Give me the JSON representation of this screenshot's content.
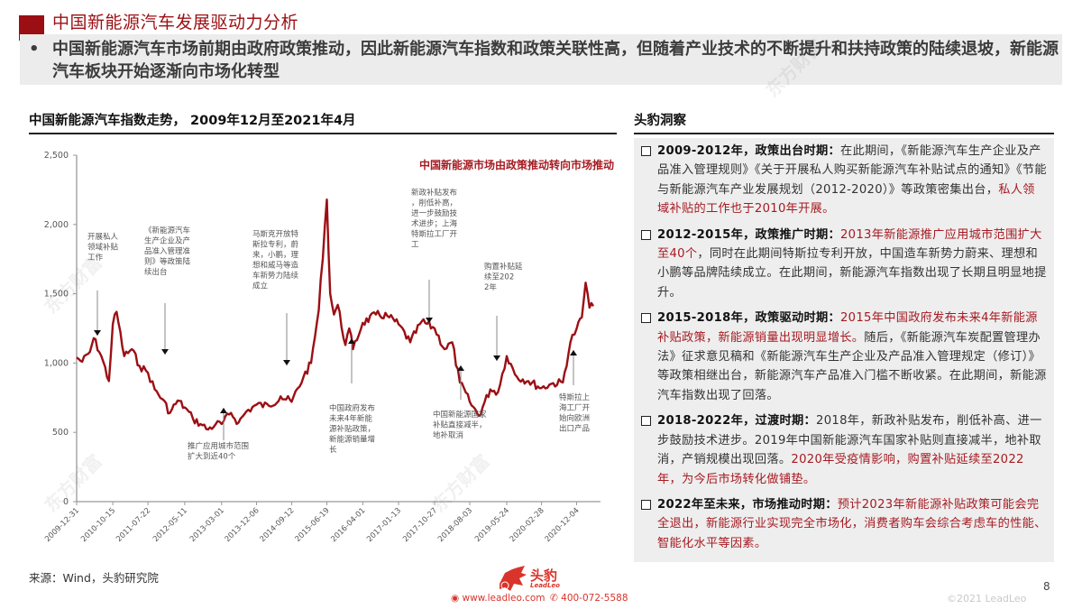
{
  "header": {
    "title": "中国新能源汽车发展驱动力分析",
    "summary_bullet": "•",
    "summary": "中国新能源汽车市场前期由政府政策推动，因此新能源汽车指数和政策关联性高，但随着产业技术的不断提升和扶持政策的陆续退坡，新能源汽车板块开始逐渐向市场化转型",
    "accent_color": "#9b0f14"
  },
  "chart_section": {
    "heading": "中国新能源汽车指数走势， 2009年12月至2021年4月"
  },
  "chart_data": {
    "type": "line",
    "title": "中国新能源汽车指数走势， 2009年12月至2021年4月",
    "subtitle": "中国新能源市场由政策推动转向市场推动",
    "xlabel": "",
    "ylabel": "",
    "ylim": [
      0,
      2500
    ],
    "yticks": [
      "0",
      "500",
      "1,000",
      "1,500",
      "2,000",
      "2,500"
    ],
    "xticks": [
      "2009-12-31",
      "2010-10-15",
      "2011-07-22",
      "2012-05-11",
      "2013-03-01",
      "2013-12-06",
      "2014-09-12",
      "2015-06-19",
      "2016-04-01",
      "2017-01-13",
      "2017-10-27",
      "2018-08-03",
      "2019-05-24",
      "2020-02-28",
      "2020-12-04"
    ],
    "grid": false,
    "legend": "none",
    "line_color": "#9b0f14",
    "series": [
      {
        "name": "中国新能源汽车指数",
        "x": [
          "2009-12-31",
          "2010-02",
          "2010-04",
          "2010-05",
          "2010-07",
          "2010-09",
          "2010-10-15",
          "2010-11",
          "2011-01",
          "2011-03",
          "2011-05",
          "2011-07-22",
          "2011-09",
          "2011-11",
          "2012-01",
          "2012-03",
          "2012-05-11",
          "2012-07",
          "2012-09",
          "2012-11",
          "2013-01",
          "2013-03-01",
          "2013-05",
          "2013-07",
          "2013-09",
          "2013-12-06",
          "2014-03",
          "2014-06",
          "2014-09-12",
          "2014-12",
          "2015-02",
          "2015-04",
          "2015-06-19",
          "2015-07",
          "2015-08",
          "2015-09",
          "2015-11",
          "2015-12",
          "2016-01",
          "2016-04-01",
          "2016-07",
          "2016-10",
          "2017-01-13",
          "2017-04",
          "2017-07",
          "2017-10-27",
          "2018-01",
          "2018-03",
          "2018-05",
          "2018-08-03",
          "2018-10",
          "2019-01",
          "2019-03",
          "2019-05-24",
          "2019-08",
          "2019-11",
          "2020-02-28",
          "2020-05",
          "2020-08",
          "2020-10",
          "2020-12-04",
          "2021-01",
          "2021-02",
          "2021-03",
          "2021-04"
        ],
        "values": [
          1040,
          1010,
          1080,
          1180,
          1050,
          870,
          1280,
          1370,
          1050,
          1100,
          980,
          930,
          810,
          740,
          640,
          730,
          680,
          600,
          560,
          520,
          560,
          560,
          640,
          570,
          650,
          700,
          690,
          760,
          720,
          900,
          1000,
          1380,
          2180,
          1500,
          1350,
          1420,
          1130,
          1250,
          1100,
          1290,
          1350,
          1340,
          1280,
          1150,
          1300,
          1250,
          1100,
          1150,
          860,
          720,
          620,
          810,
          790,
          1050,
          900,
          870,
          820,
          850,
          860,
          1150,
          1250,
          1330,
          1580,
          1400,
          1410
        ]
      }
    ],
    "annotations": [
      {
        "text": "开展私人领域补贴工作",
        "x": "2010-07",
        "direction": "down"
      },
      {
        "text": "《新能源汽车生产企业及产品准入管理准则》等政策陆续出台",
        "x": "2012-05",
        "direction": "down"
      },
      {
        "text": "推广应用城市范围扩大到近40个",
        "x": "2013-03",
        "direction": "up"
      },
      {
        "text": "马斯克开放特斯拉专利，蔚来，小鹏，理想和威马等造车新势力陆续成立",
        "x": "2014-09",
        "direction": "down"
      },
      {
        "text": "中国政府发布未来4年新能源补贴政策，新能源销量增长",
        "x": "2015-12",
        "direction": "up"
      },
      {
        "text": "新政补贴发布，削低补高，进一步鼓励技术进步；上海特斯拉工厂开工",
        "x": "2017-07",
        "direction": "down"
      },
      {
        "text": "中国新能源国家补贴直接减半，地补取消",
        "x": "2018-03",
        "direction": "up"
      },
      {
        "text": "购置补贴延续至2022年",
        "x": "2019-05",
        "direction": "down"
      },
      {
        "text": "特斯拉上海工厂开始向欧洲出口产品",
        "x": "2020-10",
        "direction": "up"
      }
    ]
  },
  "insights": {
    "heading": "头豹洞察",
    "items": [
      {
        "lead": "2009-2012年，政策出台时期：",
        "normal": "在此期间，《新能源汽车生产企业及产品准入管理规则》《关于开展私人购买新能源汽车补贴试点的通知》《节能与新能源汽车产业发展规划（2012-2020）》等政策密集出台，",
        "red": "私人领域补贴的工作也于2010年开展。",
        "tail": ""
      },
      {
        "lead": "2012-2015年，政策推广时期：",
        "normal": "",
        "red": "2013年新能源推广应用城市范围扩大至40个",
        "tail": "，同时在此期间特斯拉专利开放，中国造车新势力蔚来、理想和小鹏等品牌陆续成立。在此期间，新能源汽车指数出现了长期且明显地提升。"
      },
      {
        "lead": "2015-2018年，政策驱动时期：",
        "normal": "",
        "red": "2015年中国政府发布未来4年新能源补贴政策，新能源销量出现明显增长。",
        "tail": "随后，《新能源汽车炭配置管理办法》征求意见稿和《新能源汽车生产企业及产品准入管理规定（修订）》等政策相继出台，新能源汽车产品准入门槛不断收紧。在此期间，新能源汽车指数出现了回落。"
      },
      {
        "lead": "2018-2022年，过渡时期：",
        "normal": "2018年，新政补贴发布，削低补高、进一步鼓励技术进步。2019年中国新能源汽车国家补贴则直接减半，地补取消，产销规模出现回落。",
        "red": "2020年受疫情影响，购置补贴延续至2022年，为今后市场转化做铺垫。",
        "tail": ""
      },
      {
        "lead": "2022年至未来，市场推动时期：",
        "normal": "",
        "red": "预计2023年新能源补贴政策可能会完全退出，新能源行业实现完全市场化，消费者购车会综合考虑车的性能、智能化水平等因素。",
        "tail": ""
      }
    ]
  },
  "footer": {
    "source": "来源：Wind，头豹研究院",
    "logo_name": "头豹",
    "logo_sub": "LeadLeo",
    "website": "www.leadleo.com",
    "phone": "400-072-5588",
    "page_number": "8",
    "copyright": "©2021 LeadLeo"
  },
  "watermark": {
    "text": "东方财富",
    "sub": "leadleo.com"
  }
}
